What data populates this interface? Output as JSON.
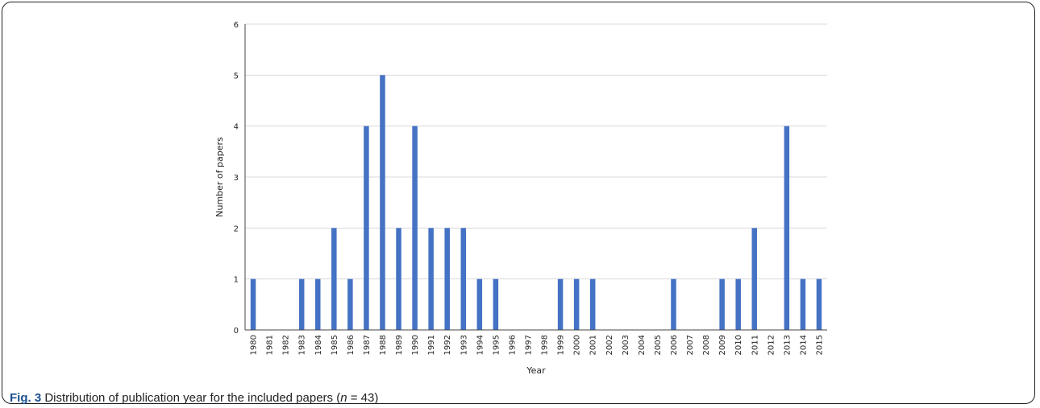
{
  "chart_data": {
    "type": "bar",
    "xlabel": "Year",
    "ylabel": "Number of papers",
    "ylim": [
      0,
      6
    ],
    "yticks": [
      0,
      1,
      2,
      3,
      4,
      5,
      6
    ],
    "grid": "horizontal",
    "bar_color": "#4472c4",
    "categories": [
      "1980",
      "1981",
      "1982",
      "1983",
      "1984",
      "1985",
      "1986",
      "1987",
      "1988",
      "1989",
      "1990",
      "1991",
      "1992",
      "1993",
      "1994",
      "1995",
      "1996",
      "1997",
      "1998",
      "1999",
      "2000",
      "2001",
      "2002",
      "2003",
      "2004",
      "2005",
      "2006",
      "2007",
      "2008",
      "2009",
      "2010",
      "2011",
      "2012",
      "2013",
      "2014",
      "2015"
    ],
    "values": [
      1,
      0,
      0,
      1,
      1,
      2,
      1,
      4,
      5,
      2,
      4,
      2,
      2,
      2,
      1,
      1,
      0,
      0,
      0,
      1,
      1,
      1,
      0,
      0,
      0,
      0,
      1,
      0,
      0,
      1,
      1,
      2,
      0,
      4,
      1,
      1
    ]
  },
  "caption": {
    "label": "Fig. 3",
    "text_before": "Distribution of publication year for the included papers (",
    "n_symbol": "n",
    "text_after": " = 43)"
  }
}
